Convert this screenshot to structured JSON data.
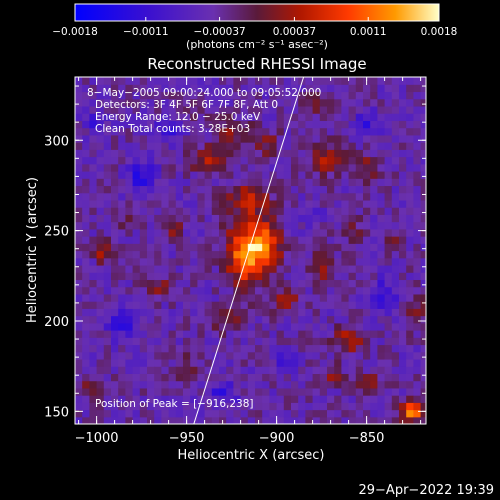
{
  "chart_data": {
    "type": "heatmap",
    "title": "Reconstructed RHESSI Image",
    "xlabel": "Heliocentric X (arcsec)",
    "ylabel": "Heliocentric Y (arcsec)",
    "xlim": [
      -1012,
      -817
    ],
    "ylim": [
      143,
      335
    ],
    "x_ticks": [
      -1000,
      -950,
      -900,
      -850
    ],
    "x_tick_labels": [
      "−1000",
      "−950",
      "−900",
      "−850"
    ],
    "y_ticks": [
      150,
      200,
      250,
      300
    ],
    "y_tick_labels": [
      "150",
      "200",
      "250",
      "300"
    ],
    "colorbar": {
      "range": [
        -0.0018,
        0.0018
      ],
      "ticks": [
        -0.0018,
        -0.0011,
        -0.00037,
        0.00037,
        0.0011,
        0.0018
      ],
      "tick_labels": [
        "−0.0018",
        "−0.0011",
        "−0.00037",
        "0.00037",
        "0.0011",
        "0.0018"
      ],
      "units_label": "(photons cm⁻² s⁻¹ asec⁻²)"
    },
    "annotations": [
      "8−May−2005 09:00:24.000  to  09:05:52.000",
      "Detectors: 3F 4F 5F 6F 7F 8F, Att 0",
      "Energy Range: 12.0 − 25.0 keV",
      "Clean     Total counts: 3.28E+03"
    ],
    "peak_label": "Position of Peak = [−916,238]",
    "peak": {
      "x": -916,
      "y": 238
    },
    "limb": {
      "x1": -946,
      "y1": 143,
      "x2": -885,
      "y2": 335
    },
    "sources": [
      {
        "x": -916,
        "y": 238,
        "amp": 0.0018,
        "sx": 8,
        "sy": 12
      },
      {
        "x": -905,
        "y": 243,
        "amp": 0.001,
        "sx": 6,
        "sy": 8
      },
      {
        "x": -915,
        "y": 268,
        "amp": 0.0008,
        "sx": 9,
        "sy": 7
      },
      {
        "x": -938,
        "y": 290,
        "amp": 0.0009,
        "sx": 7,
        "sy": 5
      },
      {
        "x": -925,
        "y": 305,
        "amp": 0.0007,
        "sx": 7,
        "sy": 5
      },
      {
        "x": -905,
        "y": 298,
        "amp": 0.0006,
        "sx": 5,
        "sy": 5
      },
      {
        "x": -870,
        "y": 290,
        "amp": 0.0009,
        "sx": 8,
        "sy": 6
      },
      {
        "x": -850,
        "y": 285,
        "amp": 0.0006,
        "sx": 5,
        "sy": 5
      },
      {
        "x": -958,
        "y": 252,
        "amp": 0.0007,
        "sx": 4,
        "sy": 5
      },
      {
        "x": -995,
        "y": 238,
        "amp": 0.0008,
        "sx": 4,
        "sy": 4
      },
      {
        "x": -965,
        "y": 220,
        "amp": 0.0006,
        "sx": 5,
        "sy": 4
      },
      {
        "x": -895,
        "y": 212,
        "amp": 0.0009,
        "sx": 5,
        "sy": 4
      },
      {
        "x": -875,
        "y": 230,
        "amp": 0.0007,
        "sx": 5,
        "sy": 6
      },
      {
        "x": -858,
        "y": 250,
        "amp": 0.0006,
        "sx": 4,
        "sy": 5
      },
      {
        "x": -930,
        "y": 200,
        "amp": 0.0006,
        "sx": 8,
        "sy": 4
      },
      {
        "x": -860,
        "y": 190,
        "amp": 0.0009,
        "sx": 6,
        "sy": 5
      },
      {
        "x": -848,
        "y": 165,
        "amp": 0.0008,
        "sx": 5,
        "sy": 4
      },
      {
        "x": -868,
        "y": 170,
        "amp": 0.0006,
        "sx": 4,
        "sy": 4
      },
      {
        "x": -950,
        "y": 175,
        "amp": 0.0005,
        "sx": 5,
        "sy": 4
      },
      {
        "x": -1002,
        "y": 165,
        "amp": 0.0006,
        "sx": 4,
        "sy": 4
      },
      {
        "x": -985,
        "y": 258,
        "amp": 0.0004,
        "sx": 4,
        "sy": 4
      },
      {
        "x": -825,
        "y": 150,
        "amp": 0.0018,
        "sx": 4,
        "sy": 4
      },
      {
        "x": -822,
        "y": 205,
        "amp": 0.0006,
        "sx": 4,
        "sy": 6
      },
      {
        "x": -835,
        "y": 245,
        "amp": 0.0005,
        "sx": 4,
        "sy": 4
      },
      {
        "x": -945,
        "y": 320,
        "amp": 0.0005,
        "sx": 5,
        "sy": 4
      },
      {
        "x": -880,
        "y": 320,
        "amp": 0.0005,
        "sx": 5,
        "sy": 4
      },
      {
        "x": -985,
        "y": 200,
        "amp": -0.0008,
        "sx": 6,
        "sy": 6
      },
      {
        "x": -975,
        "y": 280,
        "amp": -0.0008,
        "sx": 6,
        "sy": 6
      },
      {
        "x": -930,
        "y": 160,
        "amp": -0.0006,
        "sx": 6,
        "sy": 5
      },
      {
        "x": -840,
        "y": 215,
        "amp": -0.0007,
        "sx": 5,
        "sy": 6
      },
      {
        "x": -895,
        "y": 178,
        "amp": -0.0005,
        "sx": 5,
        "sy": 5
      },
      {
        "x": -850,
        "y": 310,
        "amp": -0.0006,
        "sx": 5,
        "sy": 5
      },
      {
        "x": -960,
        "y": 305,
        "amp": -0.0006,
        "sx": 5,
        "sy": 5
      },
      {
        "x": -1000,
        "y": 310,
        "amp": -0.0005,
        "sx": 5,
        "sy": 5
      },
      {
        "x": -880,
        "y": 260,
        "amp": -0.0004,
        "sx": 4,
        "sy": 4
      }
    ]
  },
  "timestamp": "29−Apr−2022 19:39"
}
